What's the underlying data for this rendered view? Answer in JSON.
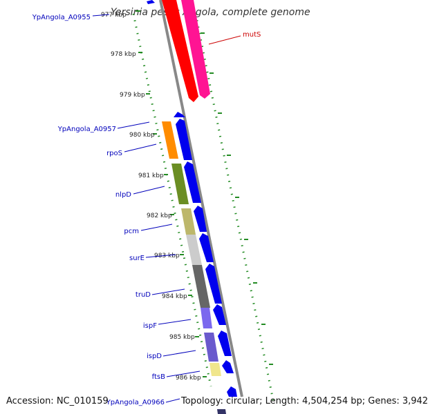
{
  "title": "Yersinia pestis Angola, complete genome",
  "footer": {
    "accession": "Accession: NC_010159",
    "summary": "Topology: circular; Length: 4,504,254 bp; Genes: 3,942"
  },
  "ticks": [
    {
      "label": "977 kbp"
    },
    {
      "label": "978 kbp"
    },
    {
      "label": "979 kbp"
    },
    {
      "label": "980 kbp"
    },
    {
      "label": "981 kbp"
    },
    {
      "label": "982 kbp"
    },
    {
      "label": "983 kbp"
    },
    {
      "label": "984 kbp"
    },
    {
      "label": "985 kbp"
    },
    {
      "label": "986 kbp"
    }
  ],
  "left_labels": [
    {
      "text": "YpAngola_A0955"
    },
    {
      "text": "YpAngola_A0957"
    },
    {
      "text": "rpoS"
    },
    {
      "text": "nlpD"
    },
    {
      "text": "pcm"
    },
    {
      "text": "surE"
    },
    {
      "text": "truD"
    },
    {
      "text": "ispF"
    },
    {
      "text": "ispD"
    },
    {
      "text": "ftsB"
    },
    {
      "text": "YpAngola_A0966"
    }
  ],
  "right_labels": [
    {
      "text": "mutS"
    }
  ],
  "colors": {
    "backbone": "#888888",
    "gene_arrow": "#0000ee",
    "tick": "#228b22",
    "gene_label": "#0000bb",
    "mutS_label": "#cc0000",
    "mutS_red": "#ff0000",
    "mutS_pink": "#ff1493"
  }
}
